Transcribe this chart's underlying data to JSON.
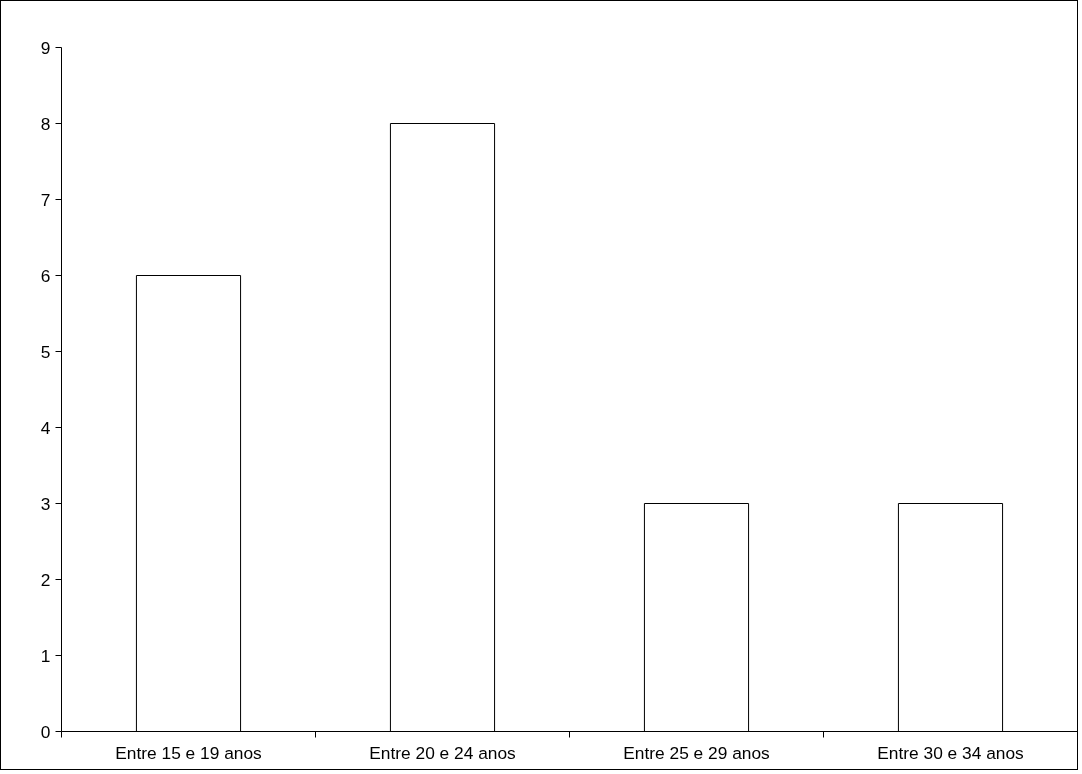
{
  "chart_data": {
    "type": "bar",
    "categories": [
      "Entre 15 e 19 anos",
      "Entre 20 e 24 anos",
      "Entre 25 e 29 anos",
      "Entre 30 e 34 anos"
    ],
    "values": [
      6,
      8,
      3,
      3
    ],
    "color": "#ffffff",
    "ylim": [
      0,
      9
    ],
    "yticks": [
      0,
      1,
      2,
      3,
      4,
      5,
      6,
      7,
      8,
      9
    ],
    "grid": false
  }
}
